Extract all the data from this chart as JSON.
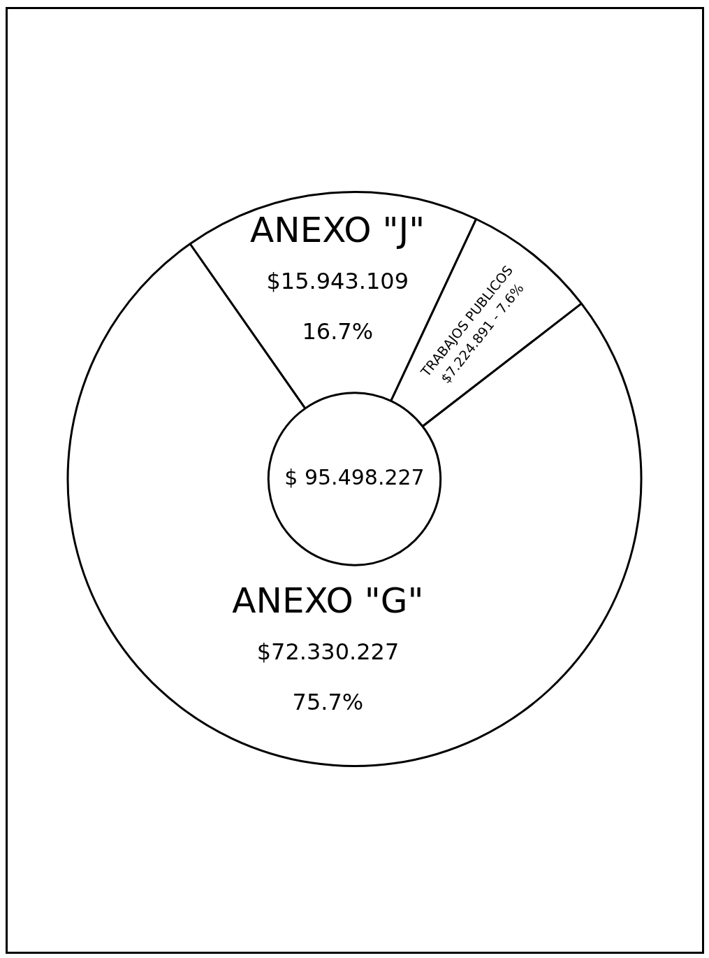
{
  "chart_data": {
    "type": "donut",
    "categories": [
      "ANEXO \"J\"",
      "TRABAJOS PUBLICOS",
      "ANEXO \"G\""
    ],
    "values": [
      15943109,
      7224891,
      72330227
    ],
    "colors": [
      "#ffffff",
      "#ffffff",
      "#ffffff"
    ],
    "value_labels": [
      "$15.943.109\n16.7%",
      "$7.224.891 - 7.6%",
      "$72.330.227\n75.7%"
    ],
    "annotations": [
      "$ 95.498.227"
    ],
    "legend": false
  }
}
